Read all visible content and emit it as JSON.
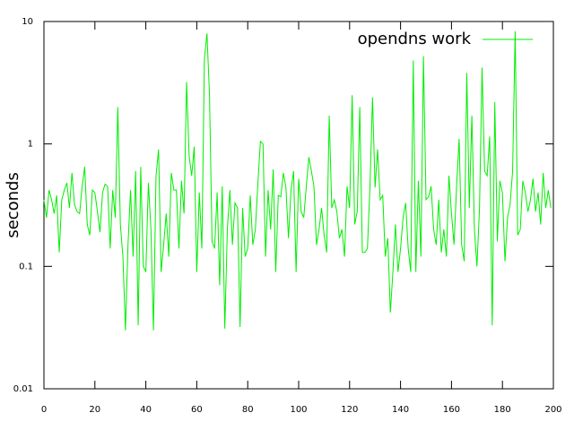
{
  "chart_data": {
    "type": "line",
    "ylabel": "seconds",
    "x": [
      0,
      1,
      2,
      3,
      4,
      5,
      6,
      7,
      8,
      9,
      10,
      11,
      12,
      13,
      14,
      15,
      16,
      17,
      18,
      19,
      20,
      21,
      22,
      23,
      24,
      25,
      26,
      27,
      28,
      29,
      30,
      31,
      32,
      33,
      34,
      35,
      36,
      37,
      38,
      39,
      40,
      41,
      42,
      43,
      44,
      45,
      46,
      47,
      48,
      49,
      50,
      51,
      52,
      53,
      54,
      55,
      56,
      57,
      58,
      59,
      60,
      61,
      62,
      63,
      64,
      65,
      66,
      67,
      68,
      69,
      70,
      71,
      72,
      73,
      74,
      75,
      76,
      77,
      78,
      79,
      80,
      81,
      82,
      83,
      84,
      85,
      86,
      87,
      88,
      89,
      90,
      91,
      92,
      93,
      94,
      95,
      96,
      97,
      98,
      99,
      100,
      101,
      102,
      103,
      104,
      105,
      106,
      107,
      108,
      109,
      110,
      111,
      112,
      113,
      114,
      115,
      116,
      117,
      118,
      119,
      120,
      121,
      122,
      123,
      124,
      125,
      126,
      127,
      128,
      129,
      130,
      131,
      132,
      133,
      134,
      135,
      136,
      137,
      138,
      139,
      140,
      141,
      142,
      143,
      144,
      145,
      146,
      147,
      148,
      149,
      150,
      151,
      152,
      153,
      154,
      155,
      156,
      157,
      158,
      159,
      160,
      161,
      162,
      163,
      164,
      165,
      166,
      167,
      168,
      169,
      170,
      171,
      172,
      173,
      174,
      175,
      176,
      177,
      178,
      179,
      180,
      181,
      182,
      183,
      184,
      185,
      186,
      187,
      188,
      189,
      190,
      191,
      192,
      193,
      194,
      195,
      196,
      197,
      198,
      199
    ],
    "series": [
      {
        "name": "opendns work",
        "color": "#00ee00",
        "values": [
          0.35,
          0.25,
          0.42,
          0.35,
          0.27,
          0.38,
          0.13,
          0.35,
          0.42,
          0.48,
          0.3,
          0.58,
          0.32,
          0.28,
          0.27,
          0.45,
          0.65,
          0.22,
          0.18,
          0.42,
          0.4,
          0.28,
          0.19,
          0.4,
          0.47,
          0.45,
          0.14,
          0.42,
          0.25,
          2.0,
          0.22,
          0.12,
          0.03,
          0.15,
          0.42,
          0.12,
          0.6,
          0.033,
          0.65,
          0.1,
          0.09,
          0.48,
          0.2,
          0.03,
          0.55,
          0.9,
          0.09,
          0.15,
          0.27,
          0.12,
          0.58,
          0.42,
          0.42,
          0.14,
          0.5,
          0.27,
          3.2,
          0.8,
          0.55,
          0.95,
          0.09,
          0.4,
          0.14,
          5.0,
          8.0,
          2.5,
          0.16,
          0.14,
          0.4,
          0.07,
          0.45,
          0.031,
          0.2,
          0.42,
          0.15,
          0.33,
          0.3,
          0.032,
          0.3,
          0.12,
          0.14,
          0.38,
          0.15,
          0.2,
          0.48,
          1.05,
          1.0,
          0.12,
          0.42,
          0.2,
          0.62,
          0.09,
          0.38,
          0.37,
          0.58,
          0.44,
          0.17,
          0.42,
          0.6,
          0.09,
          0.52,
          0.28,
          0.25,
          0.45,
          0.78,
          0.6,
          0.45,
          0.15,
          0.2,
          0.3,
          0.18,
          0.13,
          1.7,
          0.3,
          0.35,
          0.28,
          0.17,
          0.2,
          0.12,
          0.45,
          0.3,
          2.5,
          0.22,
          0.28,
          2.0,
          0.13,
          0.13,
          0.14,
          0.45,
          2.4,
          0.44,
          0.9,
          0.35,
          0.38,
          0.12,
          0.17,
          0.042,
          0.09,
          0.22,
          0.09,
          0.14,
          0.25,
          0.33,
          0.14,
          0.09,
          4.8,
          0.09,
          0.5,
          0.12,
          5.2,
          0.35,
          0.37,
          0.45,
          0.2,
          0.15,
          0.35,
          0.13,
          0.2,
          0.12,
          0.55,
          0.27,
          0.15,
          0.45,
          1.1,
          0.15,
          0.11,
          3.8,
          0.3,
          1.7,
          0.2,
          0.1,
          0.3,
          4.2,
          0.6,
          0.55,
          1.15,
          0.033,
          2.2,
          0.16,
          0.5,
          0.4,
          0.11,
          0.25,
          0.32,
          0.6,
          8.3,
          0.18,
          0.2,
          0.5,
          0.4,
          0.28,
          0.35,
          0.52,
          0.28,
          0.4,
          0.22,
          0.58,
          0.3,
          0.42,
          0.3
        ]
      }
    ],
    "xlim": [
      0,
      200
    ],
    "xticks": [
      0,
      20,
      40,
      60,
      80,
      100,
      120,
      140,
      160,
      180,
      200
    ],
    "ylim": [
      0.01,
      10
    ],
    "yticks": [
      0.01,
      0.1,
      1,
      10
    ],
    "ylog": true,
    "legend": "upper right"
  }
}
